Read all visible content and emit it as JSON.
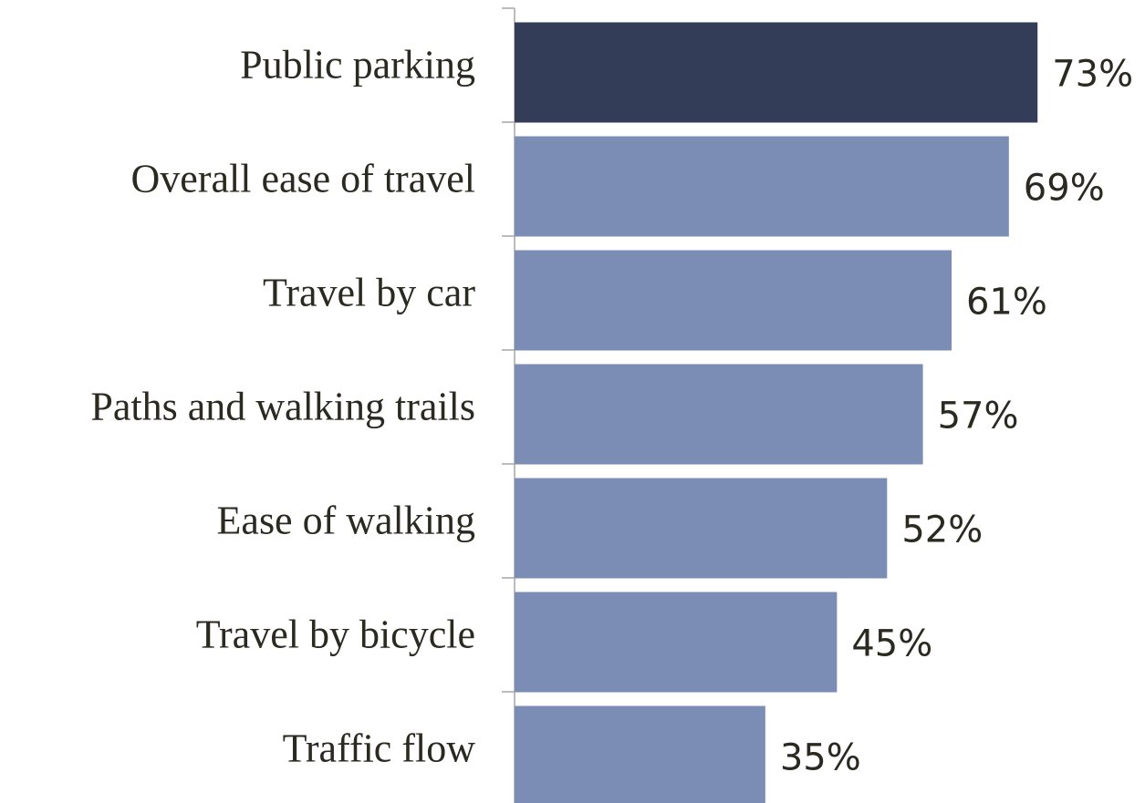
{
  "chart_data": {
    "type": "barh",
    "categories": [
      "Public parking",
      "Overall ease of travel",
      "Travel by car",
      "Paths and walking trails",
      "Ease of walking",
      "Travel by bicycle",
      "Traffic flow"
    ],
    "values": [
      73,
      69,
      61,
      57,
      52,
      45,
      35
    ],
    "value_labels": [
      "73%",
      "69%",
      "61%",
      "57%",
      "52%",
      "45%",
      "35%"
    ],
    "colors": [
      "#333d58",
      "#7b8db5",
      "#7b8db5",
      "#7b8db5",
      "#7b8db5",
      "#7b8db5",
      "#7b8db5"
    ],
    "xlim": [
      0,
      88
    ]
  }
}
